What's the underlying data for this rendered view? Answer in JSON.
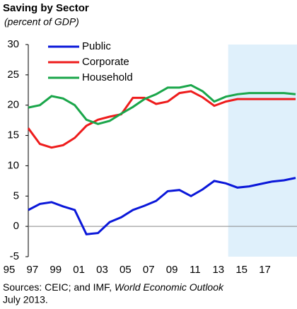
{
  "chart_data": {
    "type": "line",
    "title": "Saving by Sector",
    "subtitle": "(percent of GDP)",
    "x": [
      1995,
      1996,
      1997,
      1998,
      1999,
      2000,
      2001,
      2002,
      2003,
      2004,
      2005,
      2006,
      2007,
      2008,
      2009,
      2010,
      2011,
      2012,
      2013,
      2014,
      2015,
      2016,
      2017,
      2018
    ],
    "xlim": [
      1995,
      2018
    ],
    "xticks": [
      {
        "value": 1995,
        "label": "95"
      },
      {
        "value": 1997,
        "label": "97"
      },
      {
        "value": 1999,
        "label": "99"
      },
      {
        "value": 2001,
        "label": "01"
      },
      {
        "value": 2003,
        "label": "03"
      },
      {
        "value": 2005,
        "label": "05"
      },
      {
        "value": 2007,
        "label": "07"
      },
      {
        "value": 2009,
        "label": "09"
      },
      {
        "value": 2011,
        "label": "11"
      },
      {
        "value": 2013,
        "label": "13"
      },
      {
        "value": 2015,
        "label": "15"
      },
      {
        "value": 2017,
        "label": "17"
      }
    ],
    "ylim": [
      -5,
      30
    ],
    "yticks": [
      -5,
      0,
      5,
      10,
      15,
      20,
      25,
      30
    ],
    "shaded_region": [
      2012.2,
      2018
    ],
    "shade_color": "#dff0fb",
    "series": [
      {
        "name": "Public",
        "color": "#0a17d9",
        "values": [
          2.7,
          3.7,
          4.0,
          3.3,
          2.7,
          -1.3,
          -1.1,
          0.7,
          1.5,
          2.7,
          3.4,
          4.2,
          5.8,
          6.0,
          5.0,
          6.1,
          7.5,
          7.1,
          6.4,
          6.6,
          7.0,
          7.4,
          7.6,
          8.0
        ]
      },
      {
        "name": "Corporate",
        "color": "#ee1c1c",
        "values": [
          16.2,
          13.6,
          13.0,
          13.4,
          14.6,
          16.6,
          17.6,
          18.1,
          18.5,
          21.2,
          21.2,
          20.2,
          20.6,
          22.0,
          22.3,
          21.3,
          19.9,
          20.6,
          21.0,
          21.0,
          21.0,
          21.0,
          21.0,
          21.0
        ]
      },
      {
        "name": "Household",
        "color": "#1aa64a",
        "values": [
          19.6,
          20.0,
          21.5,
          21.1,
          20.0,
          17.6,
          16.9,
          17.4,
          18.6,
          19.7,
          21.0,
          21.8,
          22.9,
          22.9,
          23.3,
          22.3,
          20.6,
          21.4,
          21.8,
          22.0,
          22.0,
          22.0,
          22.0,
          21.8
        ]
      }
    ],
    "source": [
      "Sources: CEIC; and IMF, ",
      "World Economic Outlook",
      "July 2013."
    ]
  }
}
